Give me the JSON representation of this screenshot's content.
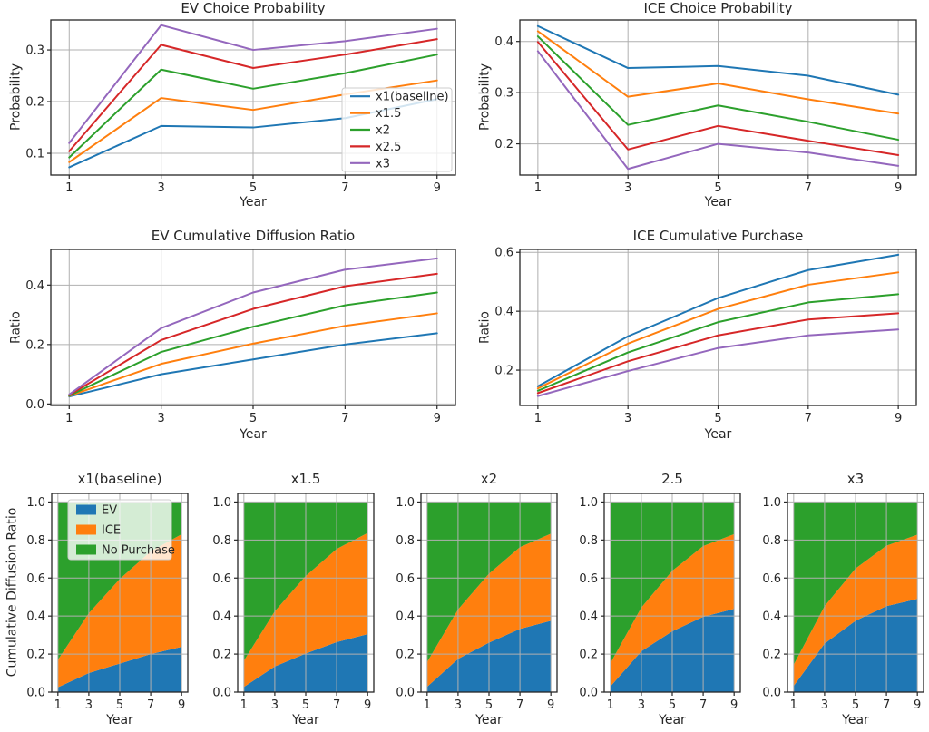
{
  "figure": {
    "background": "#ffffff",
    "grid_color": "#b0b0b0",
    "spine_color": "#262626",
    "text_color": "#262626"
  },
  "chart_data": [
    {
      "id": "ev_choice",
      "type": "line",
      "title": "EV Choice Probability",
      "xlabel": "Year",
      "ylabel": "Probability",
      "x": [
        1,
        3,
        5,
        7,
        9
      ],
      "xlim": [
        0.6,
        9.4
      ],
      "ylim": [
        0.058,
        0.358
      ],
      "xtick_vals": [
        1,
        3,
        5,
        7,
        9
      ],
      "xtick_labels": [
        "1",
        "3",
        "5",
        "7",
        "9"
      ],
      "ytick_vals": [
        0.1,
        0.2,
        0.3
      ],
      "ytick_labels": [
        "0.1",
        "0.2",
        "0.3"
      ],
      "grid": true,
      "legend": {
        "show": true,
        "location": "center right"
      },
      "series": [
        {
          "name": "x1(baseline)",
          "color": "#1f77b4",
          "values": [
            0.073,
            0.153,
            0.15,
            0.168,
            0.205
          ]
        },
        {
          "name": "x1.5",
          "color": "#ff7f0e",
          "values": [
            0.083,
            0.207,
            0.184,
            0.214,
            0.241
          ]
        },
        {
          "name": "x2",
          "color": "#2ca02c",
          "values": [
            0.092,
            0.262,
            0.225,
            0.255,
            0.291
          ]
        },
        {
          "name": "x2.5",
          "color": "#d62728",
          "values": [
            0.104,
            0.31,
            0.265,
            0.291,
            0.321
          ]
        },
        {
          "name": "x3",
          "color": "#9467bd",
          "values": [
            0.12,
            0.348,
            0.3,
            0.317,
            0.341
          ]
        }
      ]
    },
    {
      "id": "ice_choice",
      "type": "line",
      "title": "ICE Choice Probability",
      "xlabel": "Year",
      "ylabel": "Probability",
      "x": [
        1,
        3,
        5,
        7,
        9
      ],
      "xlim": [
        0.6,
        9.4
      ],
      "ylim": [
        0.139,
        0.442
      ],
      "xtick_vals": [
        1,
        3,
        5,
        7,
        9
      ],
      "xtick_labels": [
        "1",
        "3",
        "5",
        "7",
        "9"
      ],
      "ytick_vals": [
        0.2,
        0.3,
        0.4
      ],
      "ytick_labels": [
        "0.2",
        "0.3",
        "0.4"
      ],
      "grid": true,
      "legend": {
        "show": false
      },
      "series": [
        {
          "name": "x1(baseline)",
          "color": "#1f77b4",
          "values": [
            0.43,
            0.348,
            0.352,
            0.333,
            0.296
          ]
        },
        {
          "name": "x1.5",
          "color": "#ff7f0e",
          "values": [
            0.42,
            0.292,
            0.318,
            0.287,
            0.259
          ]
        },
        {
          "name": "x2",
          "color": "#2ca02c",
          "values": [
            0.41,
            0.237,
            0.275,
            0.243,
            0.208
          ]
        },
        {
          "name": "x2.5",
          "color": "#d62728",
          "values": [
            0.399,
            0.189,
            0.235,
            0.206,
            0.178
          ]
        },
        {
          "name": "x3",
          "color": "#9467bd",
          "values": [
            0.381,
            0.151,
            0.2,
            0.183,
            0.157
          ]
        }
      ]
    },
    {
      "id": "ev_cum",
      "type": "line",
      "title": "EV Cumulative Diffusion Ratio",
      "xlabel": "Year",
      "ylabel": "Ratio",
      "x": [
        1,
        3,
        5,
        7,
        9
      ],
      "xlim": [
        0.6,
        9.4
      ],
      "ylim": [
        -0.005,
        0.52
      ],
      "xtick_vals": [
        1,
        3,
        5,
        7,
        9
      ],
      "xtick_labels": [
        "1",
        "3",
        "5",
        "7",
        "9"
      ],
      "ytick_vals": [
        0.0,
        0.2,
        0.4
      ],
      "ytick_labels": [
        "0.0",
        "0.2",
        "0.4"
      ],
      "grid": true,
      "legend": {
        "show": false
      },
      "series": [
        {
          "name": "x1(baseline)",
          "color": "#1f77b4",
          "values": [
            0.025,
            0.1,
            0.15,
            0.2,
            0.238
          ]
        },
        {
          "name": "x1.5",
          "color": "#ff7f0e",
          "values": [
            0.027,
            0.135,
            0.203,
            0.263,
            0.305
          ]
        },
        {
          "name": "x2",
          "color": "#2ca02c",
          "values": [
            0.028,
            0.175,
            0.26,
            0.332,
            0.375
          ]
        },
        {
          "name": "x2.5",
          "color": "#d62728",
          "values": [
            0.03,
            0.215,
            0.32,
            0.396,
            0.438
          ]
        },
        {
          "name": "x3",
          "color": "#9467bd",
          "values": [
            0.032,
            0.255,
            0.375,
            0.452,
            0.49
          ]
        }
      ]
    },
    {
      "id": "ice_cum",
      "type": "line",
      "title": "ICE Cumulative Purchase",
      "xlabel": "Year",
      "ylabel": "Ratio",
      "x": [
        1,
        3,
        5,
        7,
        9
      ],
      "xlim": [
        0.6,
        9.4
      ],
      "ylim": [
        0.08,
        0.61
      ],
      "xtick_vals": [
        1,
        3,
        5,
        7,
        9
      ],
      "xtick_labels": [
        "1",
        "3",
        "5",
        "7",
        "9"
      ],
      "ytick_vals": [
        0.2,
        0.4,
        0.6
      ],
      "ytick_labels": [
        "0.2",
        "0.4",
        "0.6"
      ],
      "grid": true,
      "legend": {
        "show": false
      },
      "series": [
        {
          "name": "x1(baseline)",
          "color": "#1f77b4",
          "values": [
            0.145,
            0.315,
            0.445,
            0.54,
            0.592
          ]
        },
        {
          "name": "x1.5",
          "color": "#ff7f0e",
          "values": [
            0.138,
            0.29,
            0.408,
            0.49,
            0.532
          ]
        },
        {
          "name": "x2",
          "color": "#2ca02c",
          "values": [
            0.13,
            0.26,
            0.363,
            0.43,
            0.458
          ]
        },
        {
          "name": "x2.5",
          "color": "#d62728",
          "values": [
            0.122,
            0.23,
            0.318,
            0.372,
            0.393
          ]
        },
        {
          "name": "x3",
          "color": "#9467bd",
          "values": [
            0.112,
            0.197,
            0.275,
            0.318,
            0.338
          ]
        }
      ]
    },
    {
      "id": "stack_x1",
      "type": "stacked_area",
      "title": "x1(baseline)",
      "xlabel": "Year",
      "ylabel": "Cumulative Diffusion Ratio",
      "x": [
        1,
        3,
        5,
        7,
        9
      ],
      "xlim": [
        0.6,
        9.4
      ],
      "ylim": [
        0,
        1.045
      ],
      "xtick_vals": [
        1,
        3,
        5,
        7,
        9
      ],
      "xtick_labels": [
        "1",
        "3",
        "5",
        "7",
        "9"
      ],
      "ytick_vals": [
        0.0,
        0.2,
        0.4,
        0.6,
        0.8,
        1.0
      ],
      "ytick_labels": [
        "0.0",
        "0.2",
        "0.4",
        "0.6",
        "0.8",
        "1.0"
      ],
      "grid": true,
      "legend": {
        "show": true,
        "location": "upper left"
      },
      "series": [
        {
          "name": "EV",
          "color": "#1f77b4",
          "values": [
            0.025,
            0.1,
            0.15,
            0.2,
            0.238
          ]
        },
        {
          "name": "ICE",
          "color": "#ff7f0e",
          "values": [
            0.145,
            0.315,
            0.445,
            0.54,
            0.592
          ]
        },
        {
          "name": "No Purchase",
          "color": "#2ca02c",
          "values": [
            0.83,
            0.585,
            0.405,
            0.26,
            0.17
          ]
        }
      ]
    },
    {
      "id": "stack_x15",
      "type": "stacked_area",
      "title": "x1.5",
      "xlabel": "Year",
      "x": [
        1,
        3,
        5,
        7,
        9
      ],
      "xlim": [
        0.6,
        9.4
      ],
      "ylim": [
        0,
        1.045
      ],
      "xtick_vals": [
        1,
        3,
        5,
        7,
        9
      ],
      "xtick_labels": [
        "1",
        "3",
        "5",
        "7",
        "9"
      ],
      "ytick_vals": [
        0.0,
        0.2,
        0.4,
        0.6,
        0.8,
        1.0
      ],
      "ytick_labels": [
        "0.0",
        "0.2",
        "0.4",
        "0.6",
        "0.8",
        "1.0"
      ],
      "grid": true,
      "legend": {
        "show": false
      },
      "series": [
        {
          "name": "EV",
          "color": "#1f77b4",
          "values": [
            0.027,
            0.135,
            0.203,
            0.263,
            0.305
          ]
        },
        {
          "name": "ICE",
          "color": "#ff7f0e",
          "values": [
            0.138,
            0.29,
            0.408,
            0.49,
            0.532
          ]
        },
        {
          "name": "No Purchase",
          "color": "#2ca02c",
          "values": [
            0.835,
            0.575,
            0.389,
            0.247,
            0.163
          ]
        }
      ]
    },
    {
      "id": "stack_x2",
      "type": "stacked_area",
      "title": "x2",
      "xlabel": "Year",
      "x": [
        1,
        3,
        5,
        7,
        9
      ],
      "xlim": [
        0.6,
        9.4
      ],
      "ylim": [
        0,
        1.045
      ],
      "xtick_vals": [
        1,
        3,
        5,
        7,
        9
      ],
      "xtick_labels": [
        "1",
        "3",
        "5",
        "7",
        "9"
      ],
      "ytick_vals": [
        0.0,
        0.2,
        0.4,
        0.6,
        0.8,
        1.0
      ],
      "ytick_labels": [
        "0.0",
        "0.2",
        "0.4",
        "0.6",
        "0.8",
        "1.0"
      ],
      "grid": true,
      "legend": {
        "show": false
      },
      "series": [
        {
          "name": "EV",
          "color": "#1f77b4",
          "values": [
            0.028,
            0.175,
            0.26,
            0.332,
            0.375
          ]
        },
        {
          "name": "ICE",
          "color": "#ff7f0e",
          "values": [
            0.13,
            0.26,
            0.363,
            0.43,
            0.458
          ]
        },
        {
          "name": "No Purchase",
          "color": "#2ca02c",
          "values": [
            0.842,
            0.565,
            0.377,
            0.238,
            0.167
          ]
        }
      ]
    },
    {
      "id": "stack_x25",
      "type": "stacked_area",
      "title": "2.5",
      "xlabel": "Year",
      "x": [
        1,
        3,
        5,
        7,
        9
      ],
      "xlim": [
        0.6,
        9.4
      ],
      "ylim": [
        0,
        1.045
      ],
      "xtick_vals": [
        1,
        3,
        5,
        7,
        9
      ],
      "xtick_labels": [
        "1",
        "3",
        "5",
        "7",
        "9"
      ],
      "ytick_vals": [
        0.0,
        0.2,
        0.4,
        0.6,
        0.8,
        1.0
      ],
      "ytick_labels": [
        "0.0",
        "0.2",
        "0.4",
        "0.6",
        "0.8",
        "1.0"
      ],
      "grid": true,
      "legend": {
        "show": false
      },
      "series": [
        {
          "name": "EV",
          "color": "#1f77b4",
          "values": [
            0.03,
            0.215,
            0.32,
            0.396,
            0.438
          ]
        },
        {
          "name": "ICE",
          "color": "#ff7f0e",
          "values": [
            0.122,
            0.23,
            0.318,
            0.372,
            0.393
          ]
        },
        {
          "name": "No Purchase",
          "color": "#2ca02c",
          "values": [
            0.848,
            0.555,
            0.362,
            0.232,
            0.169
          ]
        }
      ]
    },
    {
      "id": "stack_x3",
      "type": "stacked_area",
      "title": "x3",
      "xlabel": "Year",
      "x": [
        1,
        3,
        5,
        7,
        9
      ],
      "xlim": [
        0.6,
        9.4
      ],
      "ylim": [
        0,
        1.045
      ],
      "xtick_vals": [
        1,
        3,
        5,
        7,
        9
      ],
      "xtick_labels": [
        "1",
        "3",
        "5",
        "7",
        "9"
      ],
      "ytick_vals": [
        0.0,
        0.2,
        0.4,
        0.6,
        0.8,
        1.0
      ],
      "ytick_labels": [
        "0.0",
        "0.2",
        "0.4",
        "0.6",
        "0.8",
        "1.0"
      ],
      "grid": true,
      "legend": {
        "show": false
      },
      "series": [
        {
          "name": "EV",
          "color": "#1f77b4",
          "values": [
            0.032,
            0.255,
            0.375,
            0.452,
            0.49
          ]
        },
        {
          "name": "ICE",
          "color": "#ff7f0e",
          "values": [
            0.112,
            0.197,
            0.275,
            0.318,
            0.338
          ]
        },
        {
          "name": "No Purchase",
          "color": "#2ca02c",
          "values": [
            0.856,
            0.548,
            0.35,
            0.23,
            0.172
          ]
        }
      ]
    }
  ]
}
